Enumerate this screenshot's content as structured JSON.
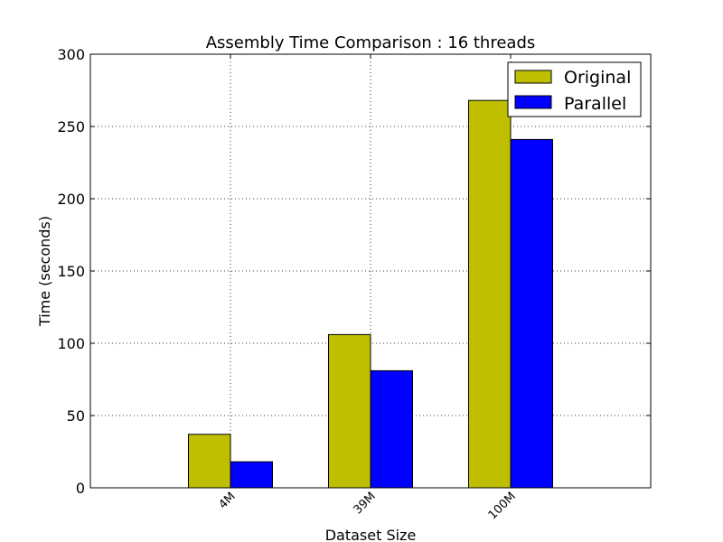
{
  "chart_data": {
    "type": "bar",
    "title": "Assembly Time Comparison : 16 threads",
    "xlabel": "Dataset Size",
    "ylabel": "Time (seconds)",
    "categories": [
      "4M",
      "39M",
      "100M"
    ],
    "series": [
      {
        "name": "Original",
        "values": [
          37,
          106,
          268
        ],
        "color": "#bfbf00"
      },
      {
        "name": "Parallel",
        "values": [
          18,
          81,
          241
        ],
        "color": "#0000ff"
      }
    ],
    "ylim": [
      0,
      300
    ],
    "yticks": [
      "0",
      "50",
      "100",
      "150",
      "200",
      "250",
      "300"
    ],
    "grid": true,
    "legend_position": "top-right"
  }
}
